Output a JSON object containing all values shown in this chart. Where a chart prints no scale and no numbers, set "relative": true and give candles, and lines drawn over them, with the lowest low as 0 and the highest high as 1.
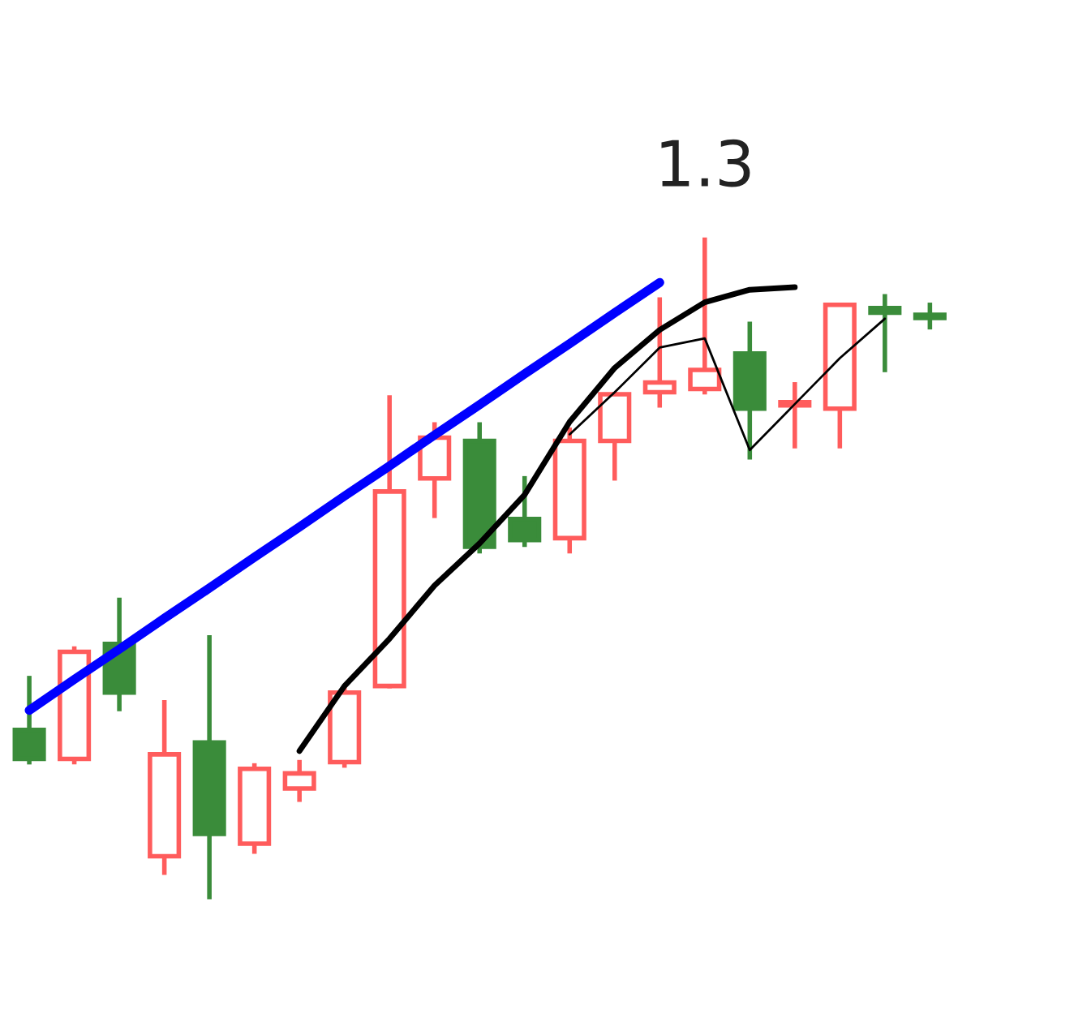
{
  "chart_data": {
    "type": "candlestick",
    "relative": true,
    "categories": [
      null,
      null,
      null,
      null,
      null,
      null,
      null,
      null,
      null,
      null,
      null,
      null,
      null,
      null,
      null,
      null,
      null,
      null,
      null,
      null,
      null
    ],
    "ohlc": [
      [
        0.254,
        0.333,
        0.205,
        0.21
      ],
      [
        0.21,
        0.378,
        0.205,
        0.373
      ],
      [
        0.385,
        0.452,
        0.286,
        0.311
      ],
      [
        0.062,
        0.296,
        0.037,
        0.217
      ],
      [
        0.235,
        0.395,
        0,
        0.096
      ],
      [
        0.081,
        0.2,
        0.069,
        0.195
      ],
      [
        0.165,
        0.205,
        0.148,
        0.188
      ],
      [
        0.205,
        0.316,
        0.2,
        0.311
      ],
      [
        0.321,
        0.76,
        0.321,
        0.617
      ],
      [
        0.637,
        0.719,
        0.58,
        0.699
      ],
      [
        0.694,
        0.719,
        0.526,
        0.533
      ],
      [
        0.575,
        0.637,
        0.536,
        0.543
      ],
      [
        0.546,
        0.711,
        0.526,
        0.694
      ],
      [
        0.694,
        0.765,
        0.637,
        0.765
      ],
      [
        0.768,
        0.909,
        0.748,
        0.783
      ],
      [
        0.773,
        1,
        0.768,
        0.802
      ],
      [
        0.827,
        0.872,
        0.669,
        0.743
      ],
      [
        0.748,
        0.78,
        0.686,
        0.753
      ],
      [
        0.743,
        0.901,
        0.686,
        0.901
      ],
      [
        0.896,
        0.914,
        0.802,
        0.889
      ],
      [
        0.886,
        0.901,
        0.867,
        0.881
      ]
    ],
    "colors": [
      "#3a8c3a",
      "#ff5c5c",
      "#3a8c3a",
      "#ff5c5c",
      "#3a8c3a",
      "#ff5c5c",
      "#ff5c5c",
      "#ff5c5c",
      "#ff5c5c",
      "#ff5c5c",
      "#3a8c3a",
      "#3a8c3a",
      "#ff5c5c",
      "#ff5c5c",
      "#ff5c5c",
      "#ff5c5c",
      "#3a8c3a",
      "#ff5c5c",
      "#ff5c5c",
      "#3a8c3a",
      "#3a8c3a"
    ],
    "series": [
      {
        "type": "line",
        "color": "#0000ff",
        "values": [
          0.284,
          0.331,
          0.377,
          0.424,
          0.47,
          0.517,
          0.563,
          0.61,
          0.656,
          0.703,
          0.749,
          0.796,
          0.842,
          0.889,
          0.935,
          null,
          null,
          null,
          null,
          null,
          null
        ]
      },
      {
        "type": "line",
        "color": "#000000",
        "values": [
          null,
          null,
          null,
          null,
          null,
          null,
          0.222,
          0.321,
          0.393,
          0.474,
          0.538,
          0.612,
          0.723,
          0.805,
          0.863,
          0.905,
          0.924,
          0.928,
          null,
          null,
          null
        ]
      },
      {
        "type": "line",
        "color": "#000000",
        "values": [
          null,
          null,
          null,
          null,
          null,
          null,
          null,
          null,
          null,
          null,
          null,
          null,
          0.704,
          0.768,
          0.836,
          0.85,
          0.68,
          0.75,
          0.82,
          0.88,
          null
        ]
      }
    ],
    "annotations": [
      "1.3"
    ]
  }
}
